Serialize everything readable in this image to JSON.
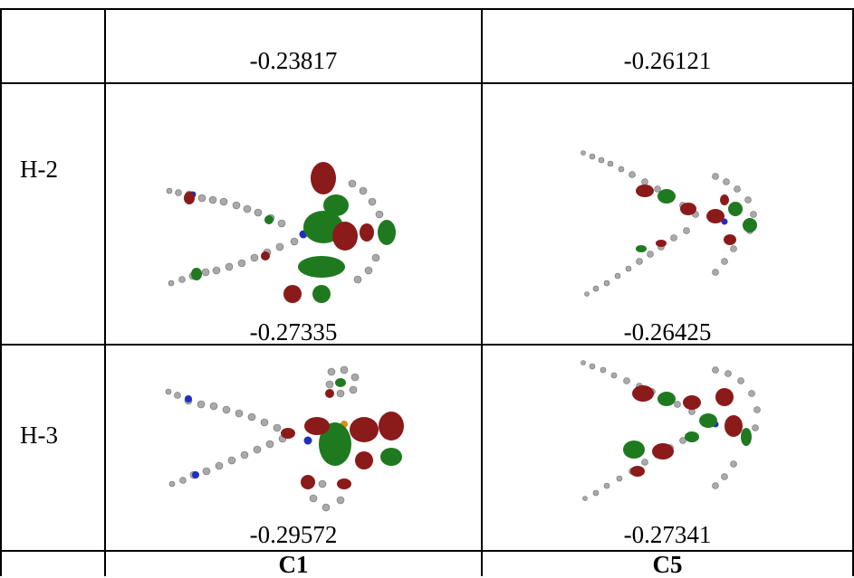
{
  "table": {
    "top_row": {
      "c1": "-0.23817",
      "c5": "-0.26121"
    },
    "rows": [
      {
        "label": "H-2",
        "c1": "-0.27335",
        "c5": "-0.26425"
      },
      {
        "label": "H-3",
        "c1": "-0.29572",
        "c5": "-0.27341"
      }
    ],
    "columns": [
      "C1",
      "C5"
    ]
  },
  "colors": {
    "orbital_positive": "#8b1a1a",
    "orbital_negative": "#1f7a1f",
    "atom": "#a9a9a9",
    "nitrogen": "#1f2fbf",
    "sulfur": "#e08a1a"
  }
}
